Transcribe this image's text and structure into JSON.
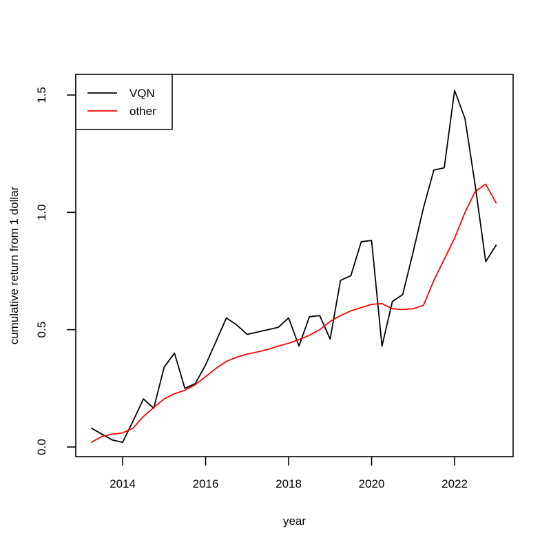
{
  "chart_data": {
    "type": "line",
    "title": "",
    "xlabel": "year",
    "ylabel": "cumulative return from 1 dollar",
    "x": [
      2013.25,
      2013.5,
      2013.75,
      2014.0,
      2014.25,
      2014.5,
      2014.75,
      2015.0,
      2015.25,
      2015.5,
      2015.75,
      2016.0,
      2016.25,
      2016.5,
      2016.75,
      2017.0,
      2017.25,
      2017.5,
      2017.75,
      2018.0,
      2018.25,
      2018.5,
      2018.75,
      2019.0,
      2019.25,
      2019.5,
      2019.75,
      2020.0,
      2020.25,
      2020.5,
      2020.75,
      2021.0,
      2021.25,
      2021.5,
      2021.75,
      2022.0,
      2022.25,
      2022.5,
      2022.75,
      2023.0
    ],
    "series": [
      {
        "name": "VQN",
        "color": "#000000",
        "values": [
          0.08,
          0.055,
          0.03,
          0.02,
          0.11,
          0.205,
          0.165,
          0.34,
          0.4,
          0.25,
          0.27,
          0.35,
          0.45,
          0.55,
          0.52,
          0.48,
          0.49,
          0.5,
          0.51,
          0.55,
          0.43,
          0.555,
          0.56,
          0.46,
          0.71,
          0.73,
          0.875,
          0.88,
          0.43,
          0.62,
          0.65,
          0.83,
          1.02,
          1.18,
          1.19,
          1.52,
          1.4,
          1.11,
          0.79,
          0.86
        ]
      },
      {
        "name": "other",
        "color": "#ff0000",
        "values": [
          0.02,
          0.045,
          0.055,
          0.06,
          0.08,
          0.13,
          0.168,
          0.205,
          0.227,
          0.242,
          0.266,
          0.3,
          0.335,
          0.365,
          0.383,
          0.396,
          0.405,
          0.416,
          0.43,
          0.442,
          0.458,
          0.476,
          0.5,
          0.535,
          0.56,
          0.58,
          0.594,
          0.608,
          0.611,
          0.589,
          0.586,
          0.589,
          0.604,
          0.71,
          0.8,
          0.89,
          1.0,
          1.09,
          1.12,
          1.04
        ]
      }
    ],
    "xticks": {
      "values": [
        2014,
        2016,
        2018,
        2020,
        2022
      ],
      "labels": [
        "2014",
        "2016",
        "2018",
        "2020",
        "2022"
      ]
    },
    "yticks": {
      "values": [
        0.0,
        0.5,
        1.0,
        1.5
      ],
      "labels": [
        "0.0",
        "0.5",
        "1.0",
        "1.5"
      ]
    },
    "xlim": [
      2012.871,
      2023.41
    ],
    "ylim": [
      -0.0411,
      1.588
    ],
    "grid": false,
    "legend_position": "topleft",
    "legend": [
      {
        "label": "VQN",
        "color": "#000000"
      },
      {
        "label": "other",
        "color": "#ff0000"
      }
    ]
  }
}
